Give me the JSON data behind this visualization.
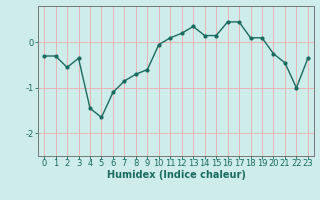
{
  "x": [
    0,
    1,
    2,
    3,
    4,
    5,
    6,
    7,
    8,
    9,
    10,
    11,
    12,
    13,
    14,
    15,
    16,
    17,
    18,
    19,
    20,
    21,
    22,
    23
  ],
  "y": [
    -0.3,
    -0.3,
    -0.55,
    -0.35,
    -1.45,
    -1.65,
    -1.1,
    -0.85,
    -0.7,
    -0.6,
    -0.05,
    0.1,
    0.2,
    0.35,
    0.15,
    0.15,
    0.45,
    0.45,
    0.1,
    0.1,
    -0.25,
    -0.45,
    -1.0,
    -0.35
  ],
  "line_color": "#1a6b60",
  "marker": "o",
  "marker_size": 2,
  "linewidth": 1.0,
  "xlabel": "Humidex (Indice chaleur)",
  "ylim": [
    -2.5,
    0.8
  ],
  "yticks": [
    -2,
    -1,
    0
  ],
  "background_color": "#cdecea",
  "grid_color": "#f0aaaa",
  "axis_color": "#1a6b60",
  "xlabel_fontsize": 7,
  "tick_fontsize": 6,
  "spine_color": "#777777"
}
